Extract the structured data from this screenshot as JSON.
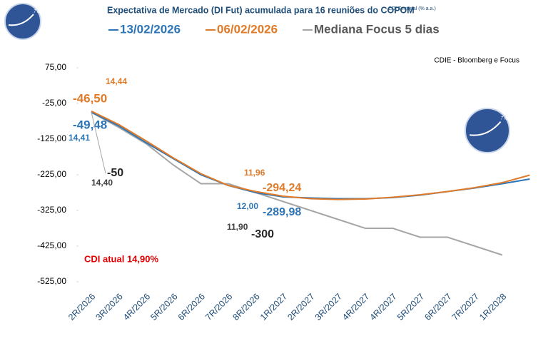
{
  "chart_data": {
    "type": "line",
    "title": "Expectativa de Mercado (DI Fut) acumulada para 16 reuniões do COPOM",
    "subtitle": "CDI Terminal (% a.a.)",
    "source": "CDIE - Bloomberg e Focus",
    "logo_text": "7 anos",
    "categories": [
      "2R/2026",
      "3R/2026",
      "4R/2026",
      "5R/2026",
      "6R/2026",
      "7R/2026",
      "8R/2026",
      "1R/2027",
      "2R/2027",
      "3R/2027",
      "4R/2027",
      "4R/2027",
      "5R/2027",
      "6R/2027",
      "7R/2027",
      "1R/2028",
      null
    ],
    "ylim": [
      -525,
      75
    ],
    "yticks": [
      {
        "value": 75,
        "label": "75,00"
      },
      {
        "value": -25,
        "label": "-25,00"
      },
      {
        "value": -125,
        "label": "-125,00"
      },
      {
        "value": -225,
        "label": "-225,00"
      },
      {
        "value": -325,
        "label": "-325,00"
      },
      {
        "value": -425,
        "label": "-425,00"
      },
      {
        "value": -525,
        "label": "-525,00"
      }
    ],
    "grid": false,
    "legend": "top",
    "series": [
      {
        "name": "13/02/2026",
        "color": "#2e75b6",
        "values": [
          -49.48,
          -88,
          -135,
          -180,
          -225,
          -255,
          -275,
          -287,
          -289.98,
          -292,
          -292,
          -289,
          -282,
          -272,
          -262,
          -250,
          -237
        ],
        "value_labels": [
          "-49,48",
          null,
          null,
          null,
          null,
          null,
          null,
          null,
          "-289,98",
          null,
          null,
          null,
          null,
          null,
          null,
          null,
          null
        ]
      },
      {
        "name": "06/02/2026",
        "color": "#e07b2a",
        "values": [
          -46.5,
          -84,
          -130,
          -178,
          -222,
          -255,
          -272,
          -285,
          -292,
          -294.24,
          -293,
          -288,
          -281,
          -272,
          -261,
          -247,
          -226
        ],
        "value_labels": [
          "-46,50",
          null,
          null,
          null,
          null,
          null,
          null,
          null,
          null,
          "-294,24",
          null,
          null,
          null,
          null,
          null,
          null,
          null
        ]
      },
      {
        "name": "Mediana Focus 5 dias",
        "color": "#a6a6a6",
        "values": [
          -50,
          -92,
          -138,
          -198,
          -250,
          -250,
          -275,
          -300,
          -325,
          -350,
          -375,
          -375,
          -400,
          -400,
          -425,
          -450,
          null
        ],
        "value_labels": [
          "-50",
          null,
          null,
          null,
          null,
          null,
          null,
          "-300",
          null,
          null,
          null,
          null,
          null,
          null,
          null,
          null,
          null
        ]
      }
    ],
    "annotations": [
      {
        "text": "14,44",
        "color": "#e07b2a"
      },
      {
        "text": "14,41",
        "color": "#2e75b6"
      },
      {
        "text": "14,40",
        "color": "#404040"
      },
      {
        "text": "11,96",
        "color": "#e07b2a"
      },
      {
        "text": "12,00",
        "color": "#2e75b6"
      },
      {
        "text": "11,90",
        "color": "#404040"
      },
      {
        "text": "CDI atual 14,90%",
        "color": "#e00000"
      }
    ]
  }
}
